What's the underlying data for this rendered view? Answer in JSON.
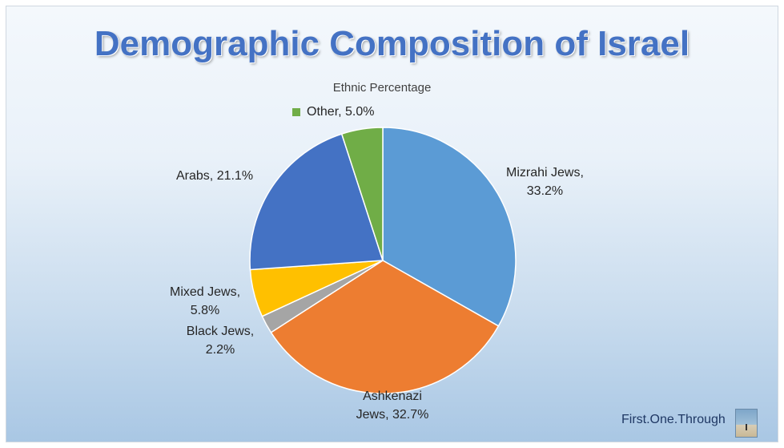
{
  "title": "Demographic Composition of Israel",
  "brand": "First.One.Through",
  "chart_data": {
    "type": "pie",
    "title": "Demographic Composition of Israel",
    "subtitle": "Ethnic Percentage",
    "start_angle_deg": 0,
    "direction": "clockwise",
    "slices": [
      {
        "label": "Mizrahi Jews,",
        "percent_text": "33.2%",
        "value": 33.2,
        "color": "#5b9bd5"
      },
      {
        "label": "Ashkenazi",
        "percent_text": "Jews, 32.7%",
        "value": 32.7,
        "color": "#ed7d31"
      },
      {
        "label": "Black Jews,",
        "percent_text": "2.2%",
        "value": 2.2,
        "color": "#a5a5a5"
      },
      {
        "label": "Mixed Jews,",
        "percent_text": "5.8%",
        "value": 5.8,
        "color": "#ffc000"
      },
      {
        "label": "Arabs, 21.1%",
        "percent_text": "",
        "value": 21.1,
        "color": "#4472c4"
      },
      {
        "label": "Other, 5.0%",
        "percent_text": "",
        "value": 5.0,
        "color": "#70ad47"
      }
    ]
  }
}
